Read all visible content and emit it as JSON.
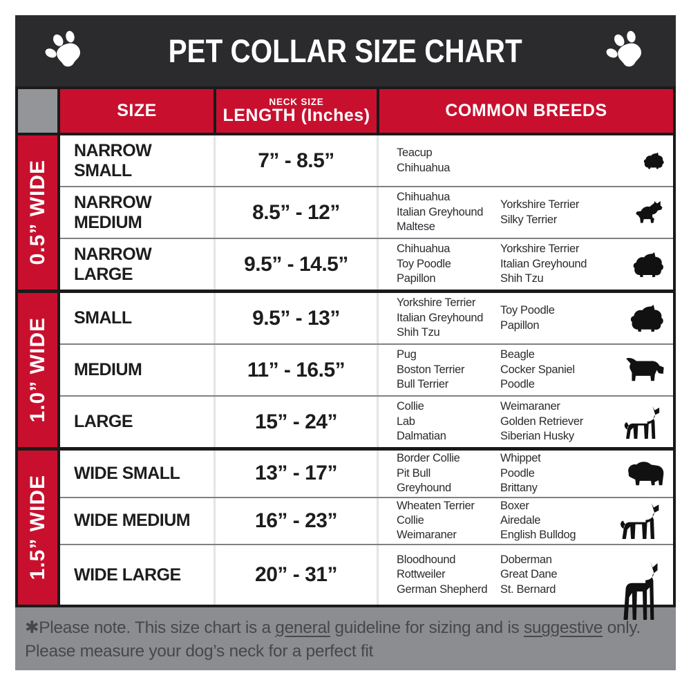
{
  "page": {
    "title": "PET COLLAR SIZE CHART",
    "paw_icon": "paw-print"
  },
  "table": {
    "headers": {
      "size_label": "SIZE",
      "neck_size_label": "NECK SIZE",
      "length_label": "LENGTH (Inches)",
      "breeds_label": "COMMON BREEDS"
    },
    "groups": [
      {
        "width_label": "0.5” WIDE",
        "rows": [
          {
            "name": "NARROW SMALL",
            "range": "7” - 8.5”",
            "breeds_col1": [
              "Teacup",
              "Chihuahua"
            ],
            "breeds_col2": [],
            "icon": "yorkshire-terrier-icon"
          },
          {
            "name": "NARROW MEDIUM",
            "range": "8.5” - 12”",
            "breeds_col1": [
              "Chihuahua",
              "Italian Greyhound",
              "Maltese"
            ],
            "breeds_col2": [
              "Yorkshire Terrier",
              "Silky Terrier"
            ],
            "icon": "chihuahua-icon"
          },
          {
            "name": "NARROW LARGE",
            "range": "9.5” - 14.5”",
            "breeds_col1": [
              "Chihuahua",
              "Toy Poodle",
              "Papillon"
            ],
            "breeds_col2": [
              "Yorkshire Terrier",
              "Italian Greyhound",
              "Shih Tzu"
            ],
            "icon": "shih-tzu-icon"
          }
        ]
      },
      {
        "width_label": "1.0” WIDE",
        "rows": [
          {
            "name": "SMALL",
            "range": "9.5” - 13”",
            "breeds_col1": [
              "Yorkshire Terrier",
              "Italian Greyhound",
              "Shih Tzu"
            ],
            "breeds_col2": [
              "Toy Poodle",
              "Papillon"
            ],
            "icon": "pekingese-icon"
          },
          {
            "name": "MEDIUM",
            "range": "11” - 16.5”",
            "breeds_col1": [
              "Pug",
              "Boston Terrier",
              "Bull Terrier"
            ],
            "breeds_col2": [
              "Beagle",
              "Cocker Spaniel",
              "Poodle"
            ],
            "icon": "dachshund-icon"
          },
          {
            "name": "LARGE",
            "range": "15” - 24”",
            "breeds_col1": [
              "Collie",
              "Lab",
              "Dalmatian"
            ],
            "breeds_col2": [
              "Weimaraner",
              "Golden Retriever",
              "Siberian Husky"
            ],
            "icon": "german-shepherd-icon"
          }
        ]
      },
      {
        "width_label": "1.5” WIDE",
        "rows": [
          {
            "name": "WIDE SMALL",
            "range": "13” - 17”",
            "breeds_col1": [
              "Border Collie",
              "Pit Bull",
              "Greyhound"
            ],
            "breeds_col2": [
              "Whippet",
              "Poodle",
              "Brittany"
            ],
            "icon": "bulldog-icon"
          },
          {
            "name": "WIDE MEDIUM",
            "range": "16” - 23”",
            "breeds_col1": [
              "Wheaten Terrier",
              "Collie",
              "Weimaraner"
            ],
            "breeds_col2": [
              "Boxer",
              "Airedale",
              "English Bulldog"
            ],
            "icon": "pit-bull-icon"
          },
          {
            "name": "WIDE LARGE",
            "range": "20” - 31”",
            "breeds_col1": [
              "Bloodhound",
              "Rottweiler",
              "German Shepherd"
            ],
            "breeds_col2": [
              "Doberman",
              "Great Dane",
              "St. Bernard"
            ],
            "icon": "doberman-icon"
          }
        ]
      }
    ]
  },
  "footer": {
    "line1_segments": [
      {
        "text": "✱Please note. This size chart is a ",
        "underline": false
      },
      {
        "text": "general",
        "underline": true
      },
      {
        "text": " guideline for sizing and is ",
        "underline": false
      },
      {
        "text": "suggestive",
        "underline": true
      },
      {
        "text": " only.",
        "underline": false
      }
    ],
    "line2": "Please measure your dog’s neck for a perfect fit"
  },
  "colors": {
    "accent_red": "#C8102E",
    "title_bar": "#2B2B2D",
    "corner_gray": "#939598",
    "footer_gray": "#8B8D90",
    "row_divider_gray": "#7E8083",
    "frame_black": "#1A1A1A"
  }
}
